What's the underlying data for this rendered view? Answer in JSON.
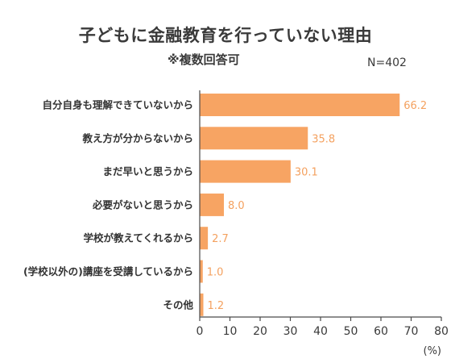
{
  "chart_data": {
    "type": "bar",
    "orientation": "horizontal",
    "title": "子どもに金融教育を行っていない理由",
    "subtitle": "※複数回答可",
    "n_label": "N=402",
    "categories": [
      "自分自身も理解できていないから",
      "教え方が分からないから",
      "まだ早いと思うから",
      "必要がないと思うから",
      "学校が教えてくれるから",
      "(学校以外の)講座を受講しているから",
      "その他"
    ],
    "values": [
      66.2,
      35.8,
      30.1,
      8.0,
      2.7,
      1.0,
      1.2
    ],
    "value_labels": [
      "66.2",
      "35.8",
      "30.1",
      "8.0",
      "2.7",
      "1.0",
      "1.2"
    ],
    "xlim": [
      0,
      80
    ],
    "x_ticks": [
      0,
      10,
      20,
      30,
      40,
      50,
      60,
      70,
      80
    ],
    "x_unit": "(%)",
    "grid": false,
    "bar_color": "#f7a463",
    "label_color": "#f4a15f"
  }
}
